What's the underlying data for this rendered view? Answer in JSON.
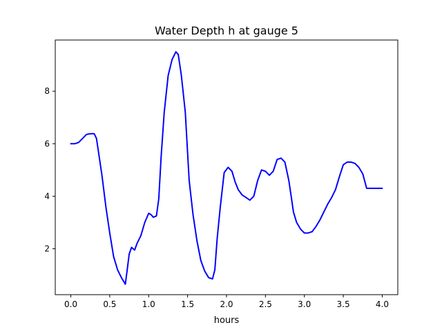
{
  "chart_data": {
    "type": "line",
    "title": "Water Depth h at gauge 5",
    "xlabel": "hours",
    "ylabel": "",
    "xlim": [
      -0.2,
      4.2
    ],
    "ylim": [
      0.25,
      9.95
    ],
    "xticks": [
      0.0,
      0.5,
      1.0,
      1.5,
      2.0,
      2.5,
      3.0,
      3.5,
      4.0
    ],
    "xtick_labels": [
      "0.0",
      "0.5",
      "1.0",
      "1.5",
      "2.0",
      "2.5",
      "3.0",
      "3.5",
      "4.0"
    ],
    "yticks": [
      2,
      4,
      6,
      8
    ],
    "ytick_labels": [
      "2",
      "4",
      "6",
      "8"
    ],
    "grid": false,
    "legend": "none",
    "series": [
      {
        "color": "#0000ff",
        "x": [
          0.0,
          0.05,
          0.1,
          0.15,
          0.2,
          0.25,
          0.3,
          0.33,
          0.36,
          0.4,
          0.45,
          0.5,
          0.55,
          0.6,
          0.65,
          0.7,
          0.72,
          0.75,
          0.78,
          0.82,
          0.85,
          0.9,
          0.95,
          1.0,
          1.03,
          1.06,
          1.1,
          1.13,
          1.16,
          1.2,
          1.25,
          1.3,
          1.35,
          1.38,
          1.42,
          1.47,
          1.52,
          1.57,
          1.62,
          1.67,
          1.72,
          1.77,
          1.82,
          1.85,
          1.88,
          1.92,
          1.97,
          2.02,
          2.07,
          2.11,
          2.15,
          2.2,
          2.25,
          2.3,
          2.35,
          2.4,
          2.45,
          2.5,
          2.55,
          2.6,
          2.65,
          2.7,
          2.75,
          2.8,
          2.83,
          2.86,
          2.9,
          2.95,
          3.0,
          3.05,
          3.1,
          3.15,
          3.2,
          3.25,
          3.3,
          3.35,
          3.4,
          3.45,
          3.5,
          3.55,
          3.6,
          3.65,
          3.7,
          3.75,
          3.8,
          3.85,
          3.9,
          3.95,
          4.0
        ],
        "y": [
          6.0,
          6.0,
          6.05,
          6.2,
          6.35,
          6.38,
          6.38,
          6.2,
          5.6,
          4.8,
          3.6,
          2.6,
          1.7,
          1.2,
          0.9,
          0.65,
          1.1,
          1.8,
          2.05,
          1.95,
          2.2,
          2.5,
          3.0,
          3.35,
          3.3,
          3.2,
          3.25,
          3.9,
          5.5,
          7.2,
          8.6,
          9.2,
          9.5,
          9.4,
          8.6,
          7.2,
          4.6,
          3.3,
          2.3,
          1.55,
          1.15,
          0.9,
          0.85,
          1.2,
          2.4,
          3.6,
          4.9,
          5.1,
          4.95,
          4.55,
          4.25,
          4.05,
          3.95,
          3.85,
          4.0,
          4.6,
          5.0,
          4.95,
          4.8,
          4.95,
          5.4,
          5.45,
          5.3,
          4.6,
          4.0,
          3.4,
          3.0,
          2.75,
          2.6,
          2.6,
          2.65,
          2.85,
          3.1,
          3.4,
          3.7,
          3.95,
          4.25,
          4.75,
          5.2,
          5.3,
          5.3,
          5.25,
          5.1,
          4.85,
          4.3,
          4.3,
          4.3,
          4.3,
          4.3
        ]
      }
    ]
  }
}
